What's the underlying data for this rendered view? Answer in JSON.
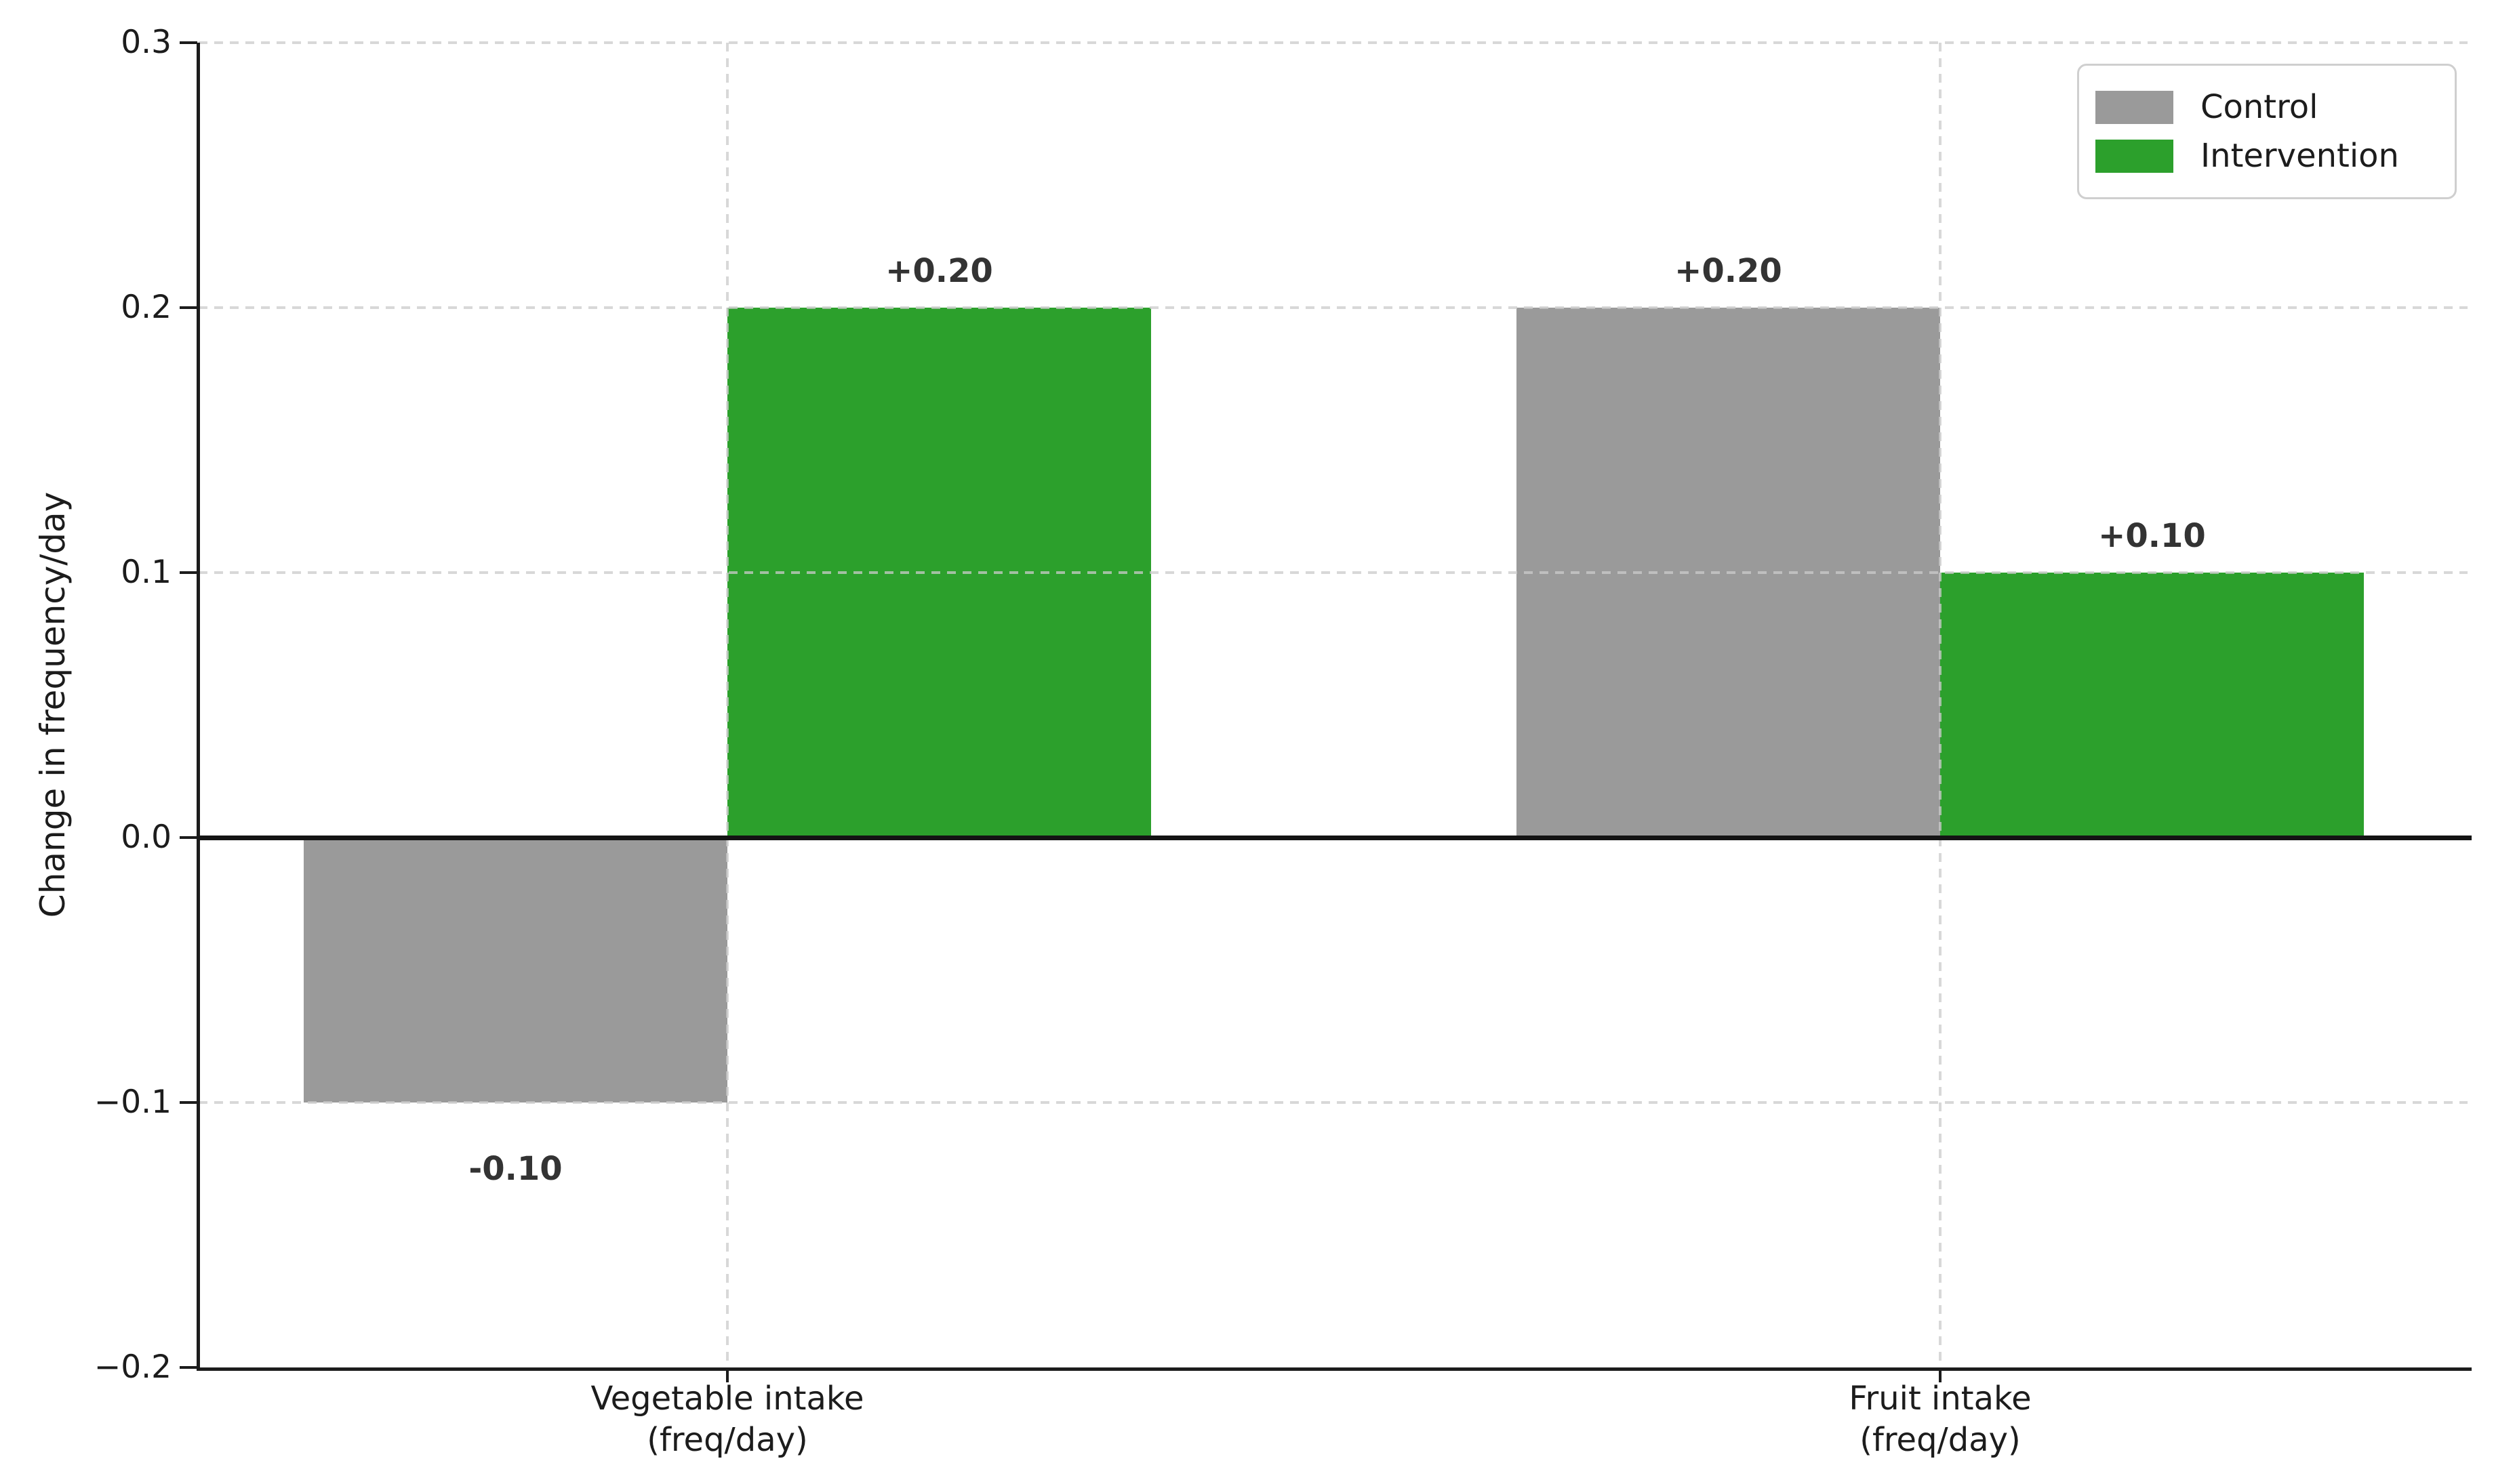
{
  "figure": {
    "background": "#ffffff"
  },
  "colors": {
    "axis": "#1c1c1c",
    "tick_label": "#1c1c1c",
    "bar_label": "#333333",
    "grid": "#d5d5d5",
    "zero_line": "#141414",
    "control": "#9a9a9a",
    "intervention": "#2ca02c"
  },
  "chart_data": {
    "type": "bar",
    "title": "",
    "xlabel": "",
    "ylabel": "Change in frequency/day",
    "categories": [
      {
        "id": "vegetable-intake",
        "line1": "Vegetable intake",
        "line2": "(freq/day)"
      },
      {
        "id": "fruit-intake",
        "line1": "Fruit intake",
        "line2": "(freq/day)"
      }
    ],
    "series": [
      {
        "name": "Control",
        "color": "#9a9a9a",
        "values": [
          -0.1,
          0.2
        ],
        "value_labels": [
          "-0.10",
          "+0.20"
        ]
      },
      {
        "name": "Intervention",
        "color": "#2ca02c",
        "values": [
          0.2,
          0.1
        ],
        "value_labels": [
          "+0.20",
          "+0.10"
        ]
      }
    ],
    "ylim": [
      -0.2,
      0.3
    ],
    "yticks": [
      {
        "value": 0.3,
        "label": "0.3"
      },
      {
        "value": 0.2,
        "label": "0.2"
      },
      {
        "value": 0.1,
        "label": "0.1"
      },
      {
        "value": 0.0,
        "label": "0.0"
      },
      {
        "value": -0.1,
        "label": "−0.1"
      },
      {
        "value": -0.2,
        "label": "−0.2"
      }
    ],
    "grid": {
      "style": "dashed",
      "horizontal": true,
      "vertical": true
    },
    "zero_line": {
      "show": true
    },
    "legend": {
      "position": "upper-right"
    }
  }
}
